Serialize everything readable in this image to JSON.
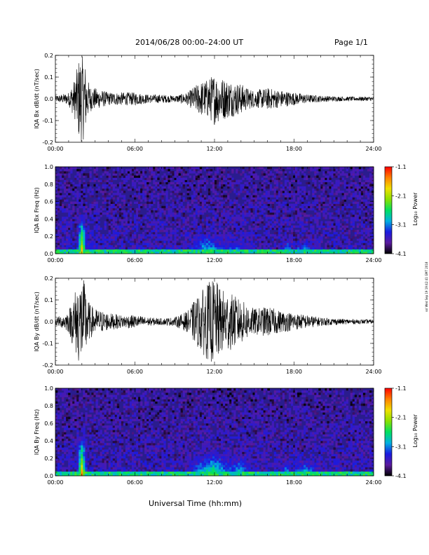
{
  "header": {
    "title": "2014/06/28   00:00–24:00 UT",
    "page": "Page 1/1"
  },
  "footer": {
    "xlabel": "Universal Time (hh:mm)",
    "stamp": "ssl Wed Sep 19 19:42:41 GMT 2018"
  },
  "colors": {
    "trace": "#000000",
    "spectro_background": "#2a1c8e",
    "colorbar": [
      "#000000",
      "#5a1a9e",
      "#1a1ae0",
      "#00b0e0",
      "#00e060",
      "#8ae000",
      "#f0e000",
      "#ff8000",
      "#ff0000"
    ]
  },
  "chart_data": [
    {
      "type": "line",
      "name": "bx-waveform",
      "ylabel": "IQA Bx dB/dt (nT/sec)",
      "xlim": [
        0,
        24
      ],
      "ylim": [
        -0.2,
        0.2
      ],
      "xticks": [
        "00:00",
        "06:00",
        "12:00",
        "18:00",
        "24:00"
      ],
      "yticks": [
        "0.2",
        "0.1",
        "0.0",
        "-0.1",
        "-0.2"
      ],
      "envelope": {
        "x": [
          0,
          0.5,
          1.0,
          1.5,
          1.8,
          2.0,
          2.2,
          2.4,
          2.6,
          3.0,
          3.5,
          4.0,
          5.0,
          6.0,
          7.0,
          8.0,
          9.0,
          10.0,
          10.5,
          11.0,
          11.5,
          12.0,
          12.5,
          13.0,
          13.5,
          14.0,
          14.5,
          15.0,
          16.0,
          17.0,
          18.0,
          19.0,
          20.0,
          21.0,
          22.0,
          23.0,
          24.0
        ],
        "amp": [
          0.015,
          0.02,
          0.03,
          0.1,
          0.2,
          0.2,
          0.18,
          0.1,
          0.06,
          0.05,
          0.04,
          0.03,
          0.03,
          0.03,
          0.02,
          0.02,
          0.015,
          0.03,
          0.06,
          0.08,
          0.09,
          0.12,
          0.1,
          0.09,
          0.08,
          0.07,
          0.05,
          0.04,
          0.05,
          0.04,
          0.03,
          0.02,
          0.015,
          0.012,
          0.01,
          0.01,
          0.01
        ]
      }
    },
    {
      "type": "heatmap",
      "name": "bx-spectrogram",
      "ylabel": "IQA Bx Freq (Hz)",
      "xlim": [
        0,
        24
      ],
      "ylim": [
        0,
        1.0
      ],
      "xticks": [
        "00:00",
        "06:00",
        "12:00",
        "18:00",
        "24:00"
      ],
      "yticks": [
        "1.0",
        "0.8",
        "0.6",
        "0.4",
        "0.2",
        "0.0"
      ],
      "colorbar": {
        "label": "Log₁₀ Power",
        "ticks": [
          "-1.1",
          "-2.1",
          "-3.1",
          "-4.1"
        ],
        "range": [
          -4.1,
          -1.1
        ]
      },
      "features": [
        {
          "x": 2.0,
          "width": 0.4,
          "fmax": 0.5,
          "level": -1.6
        },
        {
          "x": 11.5,
          "width": 2.0,
          "fmax": 0.25,
          "level": -2.6
        },
        {
          "x": 13.5,
          "width": 1.5,
          "fmax": 0.2,
          "level": -2.9
        },
        {
          "x": 17.5,
          "width": 0.4,
          "fmax": 0.2,
          "level": -2.6
        },
        {
          "x": 18.8,
          "width": 1.2,
          "fmax": 0.15,
          "level": -2.5
        }
      ]
    },
    {
      "type": "line",
      "name": "by-waveform",
      "ylabel": "IQA By dB/dt (nT/sec)",
      "xlim": [
        0,
        24
      ],
      "ylim": [
        -0.2,
        0.2
      ],
      "xticks": [
        "00:00",
        "06:00",
        "12:00",
        "18:00",
        "24:00"
      ],
      "yticks": [
        "0.2",
        "0.1",
        "0.0",
        "-0.1",
        "-0.2"
      ],
      "envelope": {
        "x": [
          0,
          0.5,
          1.0,
          1.5,
          1.8,
          2.0,
          2.2,
          2.4,
          2.6,
          3.0,
          3.5,
          4.0,
          5.0,
          6.0,
          7.0,
          8.0,
          9.0,
          10.0,
          10.5,
          11.0,
          11.5,
          12.0,
          12.5,
          13.0,
          13.5,
          14.0,
          14.5,
          15.0,
          16.0,
          17.0,
          18.0,
          19.0,
          20.0,
          21.0,
          22.0,
          23.0,
          24.0
        ],
        "amp": [
          0.02,
          0.03,
          0.05,
          0.15,
          0.2,
          0.2,
          0.19,
          0.12,
          0.08,
          0.06,
          0.05,
          0.04,
          0.03,
          0.03,
          0.02,
          0.015,
          0.02,
          0.05,
          0.1,
          0.14,
          0.18,
          0.2,
          0.15,
          0.14,
          0.12,
          0.1,
          0.08,
          0.06,
          0.07,
          0.05,
          0.04,
          0.03,
          0.02,
          0.015,
          0.012,
          0.01,
          0.01
        ]
      }
    },
    {
      "type": "heatmap",
      "name": "by-spectrogram",
      "ylabel": "IQA By Freq (Hz)",
      "xlim": [
        0,
        24
      ],
      "ylim": [
        0,
        1.0
      ],
      "xticks": [
        "00:00",
        "06:00",
        "12:00",
        "18:00",
        "24:00"
      ],
      "yticks": [
        "1.0",
        "0.8",
        "0.6",
        "0.4",
        "0.2",
        "0.0"
      ],
      "colorbar": {
        "label": "Log₁₀ Power",
        "ticks": [
          "-1.1",
          "-2.1",
          "-3.1",
          "-4.1"
        ],
        "range": [
          -4.1,
          -1.1
        ]
      },
      "features": [
        {
          "x": 2.0,
          "width": 0.4,
          "fmax": 0.5,
          "level": -1.5
        },
        {
          "x": 11.8,
          "width": 2.2,
          "fmax": 0.3,
          "level": -2.4
        },
        {
          "x": 13.8,
          "width": 1.6,
          "fmax": 0.25,
          "level": -2.7
        },
        {
          "x": 17.4,
          "width": 0.5,
          "fmax": 0.2,
          "level": -2.6
        },
        {
          "x": 18.8,
          "width": 1.2,
          "fmax": 0.18,
          "level": -2.4
        }
      ]
    }
  ]
}
